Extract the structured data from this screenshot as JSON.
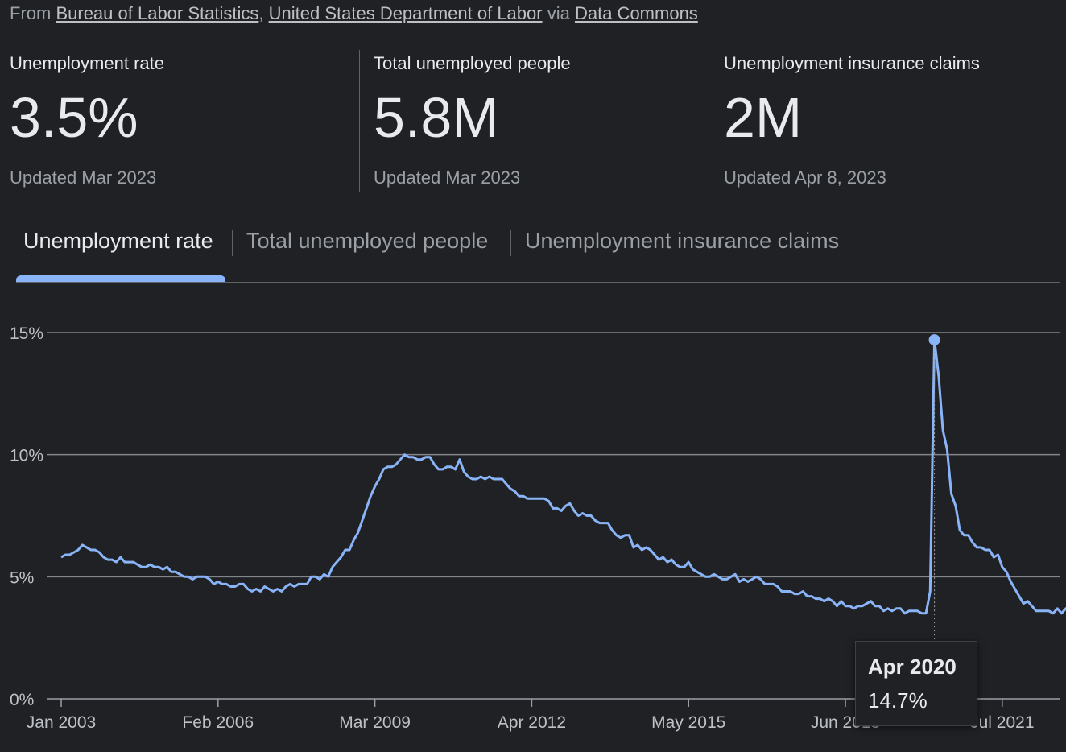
{
  "source": {
    "prefix": "From",
    "links": [
      "Bureau of Labor Statistics",
      "United States Department of Labor"
    ],
    "via": "via",
    "platform": "Data Commons"
  },
  "stats": [
    {
      "label": "Unemployment rate",
      "value": "3.5%",
      "updated": "Updated Mar 2023"
    },
    {
      "label": "Total unemployed people",
      "value": "5.8M",
      "updated": "Updated Mar 2023"
    },
    {
      "label": "Unemployment insurance claims",
      "value": "2M",
      "updated": "Updated Apr 8, 2023"
    }
  ],
  "tabs": [
    {
      "label": "Unemployment rate",
      "active": true
    },
    {
      "label": "Total unemployed people",
      "active": false
    },
    {
      "label": "Unemployment insurance claims",
      "active": false
    }
  ],
  "tooltip": {
    "date": "Apr 2020",
    "value": "14.7%"
  },
  "colors": {
    "background": "#202124",
    "line": "#8ab4f8",
    "grid": "#9aa0a6",
    "text": "#bdc1c6"
  },
  "chart_data": {
    "type": "line",
    "title": "",
    "xlabel": "",
    "ylabel": "",
    "ylim": [
      0,
      15
    ],
    "yticks": [
      {
        "value": 0,
        "label": "0%"
      },
      {
        "value": 5,
        "label": "5%"
      },
      {
        "value": 10,
        "label": "10%"
      },
      {
        "value": 15,
        "label": "15%"
      }
    ],
    "xticks": [
      "Jan 2003",
      "Feb 2006",
      "Mar 2009",
      "Apr 2012",
      "May 2015",
      "Jun 2018",
      "Jul 2021"
    ],
    "x_range": [
      "Jan 2003",
      "Mar 2023"
    ],
    "grid": true,
    "highlight": {
      "x": "Apr 2020",
      "y": 14.7
    },
    "series": [
      {
        "values": [
          5.8,
          5.9,
          5.9,
          6.0,
          6.1,
          6.3,
          6.2,
          6.1,
          6.1,
          6.0,
          5.8,
          5.7,
          5.7,
          5.6,
          5.8,
          5.6,
          5.6,
          5.6,
          5.5,
          5.4,
          5.4,
          5.5,
          5.4,
          5.4,
          5.3,
          5.4,
          5.2,
          5.2,
          5.1,
          5.0,
          5.0,
          4.9,
          5.0,
          5.0,
          5.0,
          4.9,
          4.7,
          4.8,
          4.7,
          4.7,
          4.6,
          4.6,
          4.7,
          4.7,
          4.5,
          4.4,
          4.5,
          4.4,
          4.6,
          4.5,
          4.4,
          4.5,
          4.4,
          4.6,
          4.7,
          4.6,
          4.7,
          4.7,
          4.7,
          5.0,
          5.0,
          4.9,
          5.1,
          5.0,
          5.4,
          5.6,
          5.8,
          6.1,
          6.1,
          6.5,
          6.8,
          7.3,
          7.8,
          8.3,
          8.7,
          9.0,
          9.4,
          9.5,
          9.5,
          9.6,
          9.8,
          10.0,
          9.9,
          9.9,
          9.8,
          9.8,
          9.9,
          9.9,
          9.6,
          9.4,
          9.4,
          9.5,
          9.5,
          9.4,
          9.8,
          9.3,
          9.1,
          9.0,
          9.0,
          9.1,
          9.0,
          9.1,
          9.0,
          9.0,
          9.0,
          8.8,
          8.6,
          8.5,
          8.3,
          8.3,
          8.2,
          8.2,
          8.2,
          8.2,
          8.2,
          8.1,
          7.8,
          7.8,
          7.7,
          7.9,
          8.0,
          7.7,
          7.5,
          7.6,
          7.5,
          7.5,
          7.3,
          7.2,
          7.2,
          7.2,
          6.9,
          6.7,
          6.6,
          6.7,
          6.7,
          6.2,
          6.3,
          6.1,
          6.2,
          6.1,
          5.9,
          5.7,
          5.8,
          5.6,
          5.7,
          5.5,
          5.4,
          5.4,
          5.6,
          5.3,
          5.2,
          5.1,
          5.0,
          5.0,
          5.1,
          5.0,
          4.9,
          4.9,
          5.0,
          5.1,
          4.8,
          4.9,
          4.8,
          4.9,
          5.0,
          4.9,
          4.7,
          4.7,
          4.7,
          4.6,
          4.4,
          4.4,
          4.4,
          4.3,
          4.3,
          4.4,
          4.2,
          4.2,
          4.1,
          4.1,
          4.0,
          4.1,
          4.0,
          3.8,
          4.0,
          3.8,
          3.8,
          3.7,
          3.8,
          3.8,
          3.9,
          4.0,
          3.8,
          3.8,
          3.6,
          3.7,
          3.6,
          3.7,
          3.7,
          3.5,
          3.6,
          3.6,
          3.6,
          3.5,
          3.5,
          4.4,
          14.7,
          13.2,
          11.0,
          10.2,
          8.4,
          7.9,
          6.9,
          6.7,
          6.7,
          6.4,
          6.2,
          6.2,
          6.1,
          6.1,
          5.8,
          5.9,
          5.4,
          5.2,
          4.8,
          4.5,
          4.2,
          3.9,
          4.0,
          3.8,
          3.6,
          3.6,
          3.6,
          3.6,
          3.5,
          3.7,
          3.5,
          3.7,
          3.6,
          3.5,
          3.4,
          3.6,
          3.5
        ]
      }
    ]
  }
}
